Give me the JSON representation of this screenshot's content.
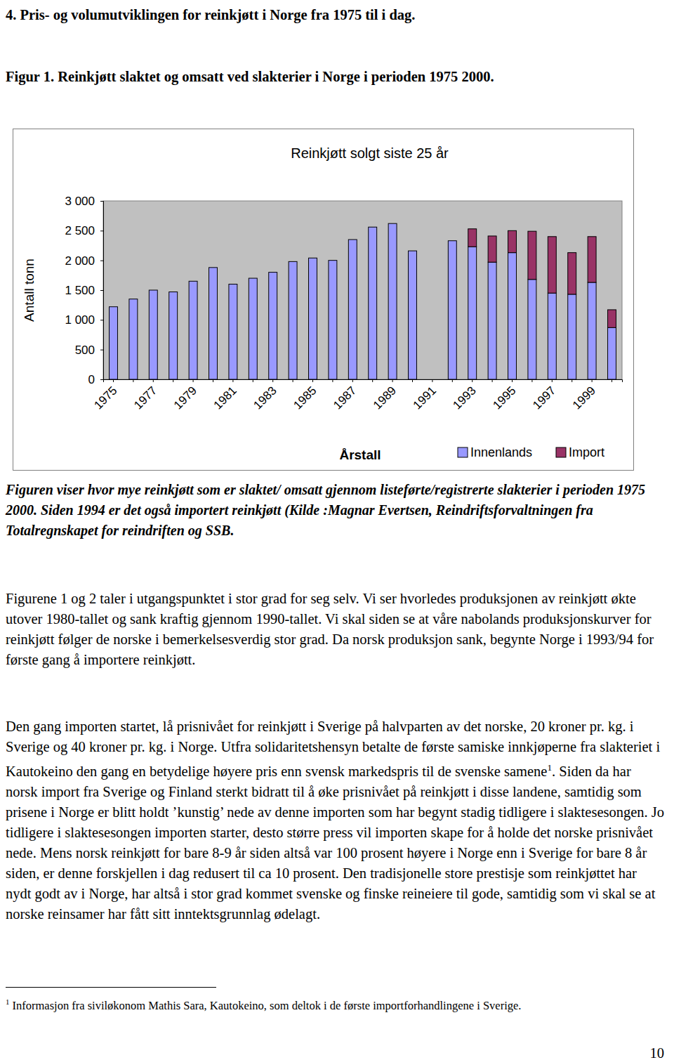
{
  "heading": "4. Pris- og volumutviklingen for reinkjøtt i Norge fra 1975 til i dag.",
  "figure_caption": "Figur 1. Reinkjøtt slaktet og omsatt ved slakterier i Norge i perioden 1975 2000.",
  "chart_data": {
    "type": "bar",
    "title": "Reinkjøtt solgt siste 25 år",
    "y_label": "Antall tonn",
    "x_label": "Årstall",
    "stacked": true,
    "legend": "bottom-right",
    "categories": [
      "1975",
      null,
      "1977",
      null,
      "1979",
      null,
      "1981",
      null,
      "1983",
      null,
      "1985",
      null,
      "1987",
      null,
      "1989",
      null,
      "1991",
      null,
      "1993",
      null,
      "1995",
      null,
      "1997",
      null,
      "1999",
      null
    ],
    "series": [
      {
        "name": "Innenlands",
        "color": "#9999ff",
        "values": [
          1220,
          1350,
          1500,
          1470,
          1650,
          1880,
          1600,
          1700,
          1800,
          1980,
          2040,
          2000,
          2350,
          2560,
          2620,
          2160,
          null,
          2330,
          2230,
          1970,
          2130,
          1680,
          1450,
          1430,
          1630,
          870
        ]
      },
      {
        "name": "Import",
        "color": "#993366",
        "values": [
          null,
          null,
          null,
          null,
          null,
          null,
          null,
          null,
          null,
          null,
          null,
          null,
          null,
          null,
          null,
          null,
          null,
          null,
          300,
          440,
          370,
          810,
          950,
          700,
          770,
          300
        ]
      }
    ],
    "ylim": [
      0,
      3000
    ],
    "yticks": [
      0,
      500,
      {
        "value": 1000,
        "label": "1 000"
      },
      {
        "value": 1500,
        "label": "1 500"
      },
      {
        "value": 2000,
        "label": "2 000"
      },
      {
        "value": 2500,
        "label": "2 500"
      },
      {
        "value": 3000,
        "label": "3 000"
      }
    ],
    "grid": false
  },
  "caption": "Figuren viser hvor mye reinkjøtt som er slaktet/ omsatt gjennom listeførte/registrerte slakterier i perioden 1975 2000. Siden 1994 er det også importert reinkjøtt (Kilde :Magnar Evertsen, Reindriftsforvaltningen fra Totalregnskapet for reindriften og SSB.",
  "paragraph_1": "Figurene 1 og 2 taler i utgangspunktet i stor grad for seg selv. Vi ser hvorledes produksjonen av reinkjøtt økte utover 1980-tallet og sank kraftig gjennom 1990-tallet. Vi skal siden se at våre nabolands produksjonskurver for reinkjøtt følger de norske i bemerkelsesverdig stor grad. Da norsk produksjon sank, begynte Norge i 1993/94 for første gang å importere reinkjøtt.",
  "paragraph_2": {
    "before": "Den gang importen startet, lå prisnivået for reinkjøtt i Sverige på halvparten av det norske, 20 kroner pr. kg. i Sverige og 40 kroner pr. kg. i Norge. Utfra solidaritetshensyn betalte de første samiske innkjøperne fra slakteriet i Kautokeino den gang en betydelige høyere pris enn svensk markedspris til de svenske samene",
    "footnote_mark": "1",
    "after": ". Siden da har norsk import fra Sverige og Finland sterkt bidratt til å øke prisnivået på reinkjøtt i disse landene, samtidig som prisene i Norge er blitt holdt ’kunstig’ nede av denne importen som har begynt stadig tidligere i slaktesesongen. Jo tidligere i slaktesesongen importen starter, desto større press vil importen skape for å holde det norske prisnivået nede. Mens norsk reinkjøtt for bare 8-9 år siden altså var 100 prosent høyere i Norge enn i Sverige for bare 8 år siden, er denne forskjellen i dag redusert til ca 10 prosent. Den tradisjonelle store prestisje som reinkjøttet har nydt godt av i Norge, har altså i stor grad kommet svenske og finske reineiere til gode, samtidig som vi skal se at norske reinsamer har fått sitt inntektsgrunnlag ødelagt."
  },
  "footnote": {
    "mark": "1",
    "text": "Informasjon fra siviløkonom Mathis Sara, Kautokeino, som deltok i de første importforhandlingene i Sverige."
  },
  "page_number": "10"
}
